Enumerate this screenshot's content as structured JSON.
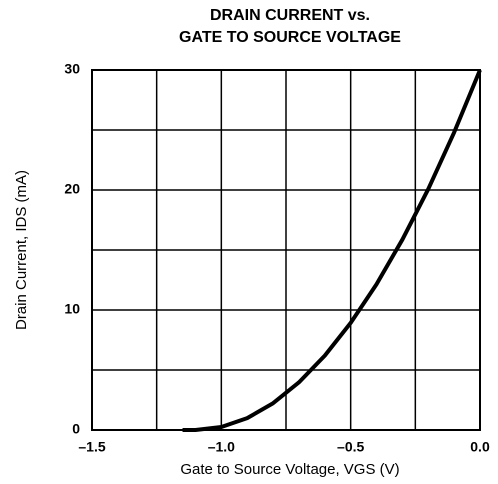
{
  "chart_data": {
    "type": "line",
    "title": [
      "DRAIN CURRENT vs.",
      "GATE TO SOURCE VOLTAGE"
    ],
    "x_label": "Gate to Source Voltage, VGS (V)",
    "y_label": "Drain Current, IDS (mA)",
    "x": [
      -1.15,
      -1.1,
      -1.0,
      -0.9,
      -0.8,
      -0.7,
      -0.6,
      -0.5,
      -0.4,
      -0.3,
      -0.2,
      -0.1,
      0.0
    ],
    "series": [
      {
        "color": "#000000",
        "values": [
          0,
          0,
          0.25,
          0.99,
          2.23,
          3.97,
          6.2,
          8.93,
          12.15,
          15.87,
          20.08,
          24.8,
          30
        ]
      }
    ],
    "xlim": [
      -1.5,
      0
    ],
    "xticks": [
      {
        "value": -1.5,
        "label": "–1.5"
      },
      {
        "value": -1.0,
        "label": "–1.0"
      },
      {
        "value": -0.5,
        "label": "–0.5"
      },
      {
        "value": 0,
        "label": "0.0"
      }
    ],
    "xminor": [
      -1.25,
      -0.75,
      -0.25
    ],
    "ylim": [
      0,
      30
    ],
    "yticks": [
      0,
      10,
      20,
      30
    ],
    "yminor": [
      5,
      15,
      25
    ],
    "grid": true
  }
}
